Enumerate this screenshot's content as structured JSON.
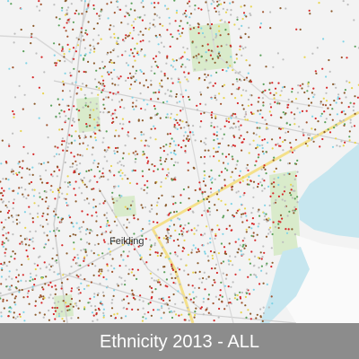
{
  "map": {
    "place_label": "Feilding",
    "caption": "Ethnicity 2013 - ALL"
  }
}
